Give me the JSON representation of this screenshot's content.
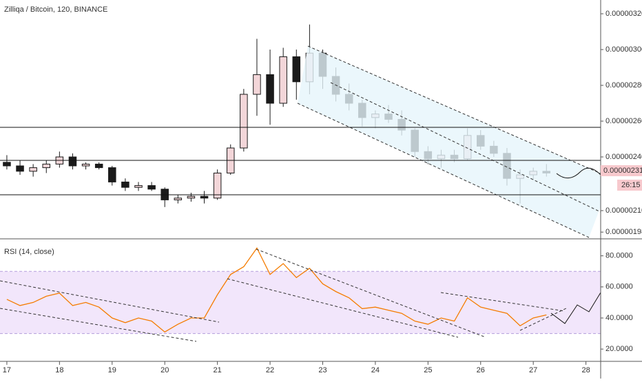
{
  "chart_data": [
    {
      "type": "candlestick",
      "title": "Zilliqa / Bitcoin, 120, BINANCE",
      "x": [
        17,
        17.25,
        17.5,
        17.75,
        18,
        18.25,
        18.5,
        18.75,
        19,
        19.25,
        19.5,
        19.75,
        20,
        20.25,
        20.5,
        20.75,
        21,
        21.25,
        21.5,
        21.75,
        22,
        22.25,
        22.5,
        22.75,
        23,
        23.25,
        23.5,
        23.75,
        24,
        24.25,
        24.5,
        24.75,
        25,
        25.25,
        25.5,
        25.75,
        26,
        26.25,
        26.5,
        26.75,
        27,
        27.25
      ],
      "open": [
        2.37e-06,
        2.35e-06,
        2.32e-06,
        2.34e-06,
        2.36e-06,
        2.4e-06,
        2.35e-06,
        2.36e-06,
        2.34e-06,
        2.26e-06,
        2.23e-06,
        2.24e-06,
        2.22e-06,
        2.16e-06,
        2.17e-06,
        2.18e-06,
        2.17e-06,
        2.31e-06,
        2.45e-06,
        2.75e-06,
        2.86e-06,
        2.7e-06,
        2.96e-06,
        2.82e-06,
        2.98e-06,
        2.85e-06,
        2.75e-06,
        2.7e-06,
        2.62e-06,
        2.64e-06,
        2.61e-06,
        2.55e-06,
        2.43e-06,
        2.39e-06,
        2.41e-06,
        2.39e-06,
        2.52e-06,
        2.46e-06,
        2.42e-06,
        2.28e-06,
        2.3e-06,
        2.32e-06
      ],
      "high": [
        2.41e-06,
        2.38e-06,
        2.36e-06,
        2.38e-06,
        2.43e-06,
        2.42e-06,
        2.37e-06,
        2.37e-06,
        2.35e-06,
        2.28e-06,
        2.26e-06,
        2.26e-06,
        2.23e-06,
        2.19e-06,
        2.2e-06,
        2.21e-06,
        2.33e-06,
        2.47e-06,
        2.78e-06,
        3.06e-06,
        3e-06,
        3.01e-06,
        3e-06,
        3.14e-06,
        3e-06,
        2.9e-06,
        2.81e-06,
        2.72e-06,
        2.66e-06,
        2.69e-06,
        2.66e-06,
        2.56e-06,
        2.46e-06,
        2.44e-06,
        2.44e-06,
        2.56e-06,
        2.55e-06,
        2.49e-06,
        2.45e-06,
        2.33e-06,
        2.34e-06,
        2.36e-06
      ],
      "low": [
        2.33e-06,
        2.3e-06,
        2.29e-06,
        2.31e-06,
        2.34e-06,
        2.33e-06,
        2.33e-06,
        2.33e-06,
        2.24e-06,
        2.21e-06,
        2.21e-06,
        2.21e-06,
        2.12e-06,
        2.14e-06,
        2.15e-06,
        2.14e-06,
        2.16e-06,
        2.3e-06,
        2.43e-06,
        2.63e-06,
        2.58e-06,
        2.68e-06,
        2.72e-06,
        2.75e-06,
        2.78e-06,
        2.71e-06,
        2.66e-06,
        2.57e-06,
        2.56e-06,
        2.59e-06,
        2.52e-06,
        2.4e-06,
        2.36e-06,
        2.34e-06,
        2.37e-06,
        2.38e-06,
        2.44e-06,
        2.4e-06,
        2.24e-06,
        2.14e-06,
        2.27e-06,
        2.29e-06
      ],
      "close": [
        2.35e-06,
        2.32e-06,
        2.34e-06,
        2.36e-06,
        2.4e-06,
        2.35e-06,
        2.36e-06,
        2.34e-06,
        2.26e-06,
        2.23e-06,
        2.24e-06,
        2.22e-06,
        2.16e-06,
        2.17e-06,
        2.18e-06,
        2.17e-06,
        2.31e-06,
        2.45e-06,
        2.75e-06,
        2.86e-06,
        2.7e-06,
        2.96e-06,
        2.82e-06,
        2.98e-06,
        2.85e-06,
        2.75e-06,
        2.7e-06,
        2.62e-06,
        2.64e-06,
        2.61e-06,
        2.55e-06,
        2.43e-06,
        2.39e-06,
        2.41e-06,
        2.39e-06,
        2.52e-06,
        2.46e-06,
        2.42e-06,
        2.28e-06,
        2.3e-06,
        2.32e-06,
        2.31e-06
      ],
      "up_color": "#f3d6d9",
      "down_color": "#1a1a1a",
      "xlim": [
        16.87,
        28.28
      ],
      "xticks": [
        17,
        18,
        19,
        20,
        21,
        22,
        23,
        24,
        25,
        26,
        27,
        28
      ],
      "ylim": [
        1.95e-06,
        3.277e-06
      ],
      "yticks": [
        {
          "value": 3.2e-06,
          "label": "0.00000320"
        },
        {
          "value": 3e-06,
          "label": "0.00000300"
        },
        {
          "value": 2.8e-06,
          "label": "0.00000280"
        },
        {
          "value": 2.6e-06,
          "label": "0.00000260"
        },
        {
          "value": 2.4e-06,
          "label": "0.00000240"
        },
        {
          "value": 2.1e-06,
          "label": "0.00000210"
        },
        {
          "value": 1.98e-06,
          "label": "0.00000198"
        }
      ],
      "last_price_label": "0.00000231",
      "countdown": "26:15"
    },
    {
      "type": "line",
      "title": "RSI (14, close)",
      "x": [
        17,
        17.25,
        17.5,
        17.75,
        18,
        18.25,
        18.5,
        18.75,
        19,
        19.25,
        19.5,
        19.75,
        20,
        20.25,
        20.5,
        20.75,
        21,
        21.25,
        21.5,
        21.75,
        22,
        22.25,
        22.5,
        22.75,
        23,
        23.25,
        23.5,
        23.75,
        24,
        24.25,
        24.5,
        24.75,
        25,
        25.25,
        25.5,
        25.75,
        26,
        26.25,
        26.5,
        26.75,
        27,
        27.25
      ],
      "series": [
        {
          "color": "#f57c00",
          "values": [
            52,
            48,
            50,
            54,
            56,
            48,
            50,
            47,
            40,
            37,
            40,
            38,
            31,
            36,
            40,
            40,
            55,
            68,
            73,
            85,
            68,
            75,
            66,
            72,
            62,
            57,
            53,
            46,
            47,
            45,
            43,
            38,
            36,
            40,
            38,
            53,
            47,
            45,
            43,
            35,
            40,
            42
          ]
        }
      ],
      "ylim": [
        12.1,
        89.6
      ],
      "yticks": [
        {
          "value": 80,
          "label": "80.0000"
        },
        {
          "value": 60,
          "label": "60.0000"
        },
        {
          "value": 40,
          "label": "40.0000"
        },
        {
          "value": 20,
          "label": "20.0000"
        }
      ],
      "band": [
        30,
        70
      ]
    }
  ]
}
